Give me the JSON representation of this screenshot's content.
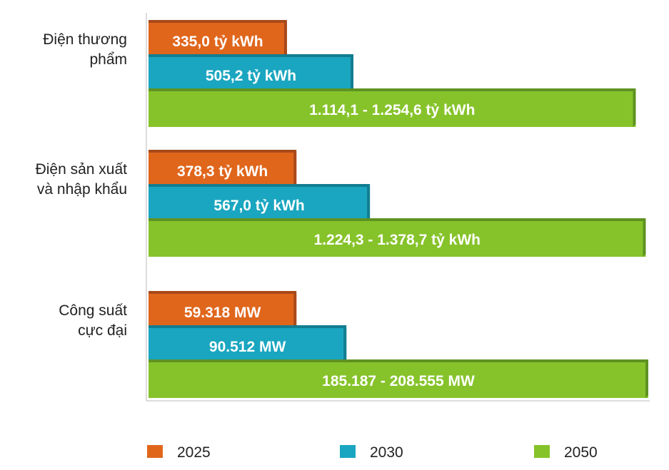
{
  "chart_data": {
    "type": "bar",
    "orientation": "horizontal",
    "categories": [
      [
        "Điện thương",
        "phẩm"
      ],
      [
        "Điện sản xuất",
        "và nhập khẩu"
      ],
      [
        "Công suất",
        "cực đại"
      ]
    ],
    "series": [
      {
        "name": "2025",
        "color": "#e0661c",
        "values": [
          1,
          1,
          1
        ],
        "labels": [
          "335,0 tỷ kWh",
          "378,3 tỷ kWh",
          "59.318 MW"
        ],
        "fill_fraction": [
          0.277,
          0.296,
          0.296
        ]
      },
      {
        "name": "2030",
        "color": "#1aa6c0",
        "values": [
          1,
          1,
          1
        ],
        "labels": [
          "505,2 tỷ kWh",
          "567,0 tỷ kWh",
          "90.512 MW"
        ],
        "fill_fraction": [
          0.41,
          0.443,
          0.396
        ]
      },
      {
        "name": "2050",
        "color": "#86c32a",
        "values": [
          1,
          1,
          1
        ],
        "labels": [
          "1.114,1 - 1.254,6 tỷ kWh",
          "1.224,3 - 1.378,7 tỷ kWh",
          "185.187 - 208.555 MW"
        ],
        "fill_fraction": [
          0.975,
          0.995,
          1.0
        ]
      }
    ],
    "legend": [
      "2025",
      "2030",
      "2050"
    ],
    "legend_position": "bottom",
    "title": "",
    "xlabel": "",
    "ylabel": ""
  }
}
